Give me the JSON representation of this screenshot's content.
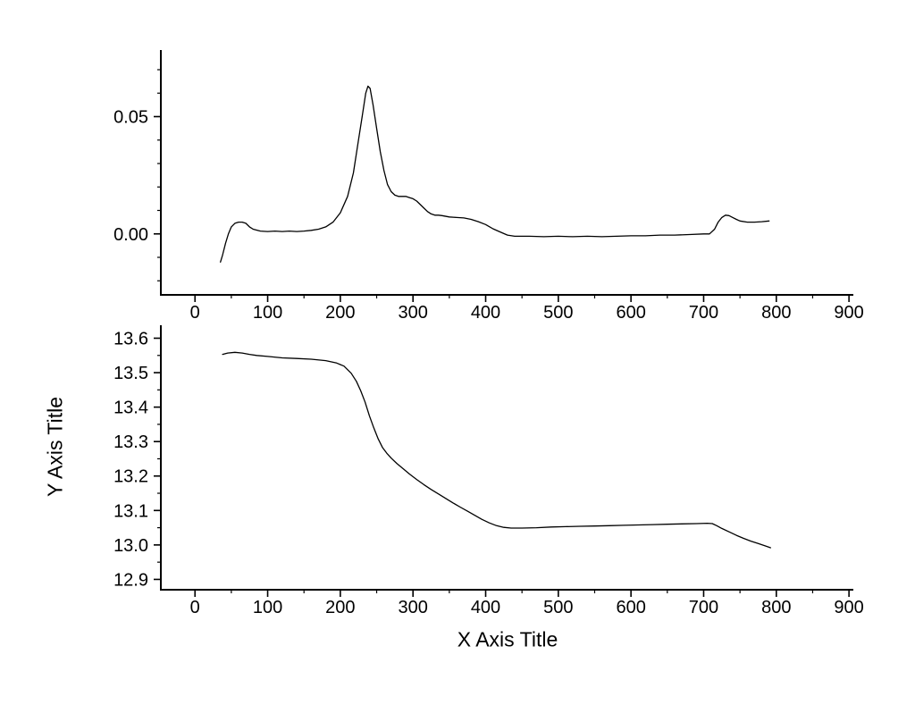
{
  "figure": {
    "background": "#ffffff",
    "line_color": "#000000",
    "axis_color": "#000000"
  },
  "labels": {
    "x_axis_title": "X Axis Title",
    "y_axis_title": "Y Axis Title"
  },
  "chart_data": [
    {
      "type": "line",
      "panel": "top",
      "title": "",
      "xlabel": "",
      "ylabel": "",
      "xlim": [
        -47,
        906
      ],
      "ylim": [
        -0.026,
        0.078
      ],
      "grid": false,
      "legend": "none",
      "x_ticks": [
        0,
        100,
        200,
        300,
        400,
        500,
        600,
        700,
        800,
        900
      ],
      "x_tick_labels": [
        "0",
        "100",
        "200",
        "300",
        "400",
        "500",
        "600",
        "700",
        "800",
        "900"
      ],
      "x_minor_step": 50,
      "y_ticks": [
        0,
        0.05
      ],
      "y_tick_labels": [
        "0.00",
        "0.05"
      ],
      "y_minor_step": 0.01,
      "x": [
        35,
        38,
        42,
        46,
        50,
        55,
        60,
        65,
        70,
        75,
        80,
        90,
        100,
        110,
        120,
        130,
        140,
        150,
        160,
        170,
        180,
        190,
        200,
        210,
        218,
        225,
        230,
        235,
        238,
        241,
        245,
        250,
        255,
        260,
        265,
        270,
        275,
        280,
        285,
        290,
        295,
        300,
        305,
        310,
        315,
        320,
        325,
        330,
        335,
        340,
        350,
        360,
        370,
        380,
        390,
        400,
        410,
        420,
        430,
        440,
        460,
        480,
        500,
        520,
        540,
        560,
        580,
        600,
        620,
        640,
        660,
        680,
        700,
        708,
        715,
        720,
        725,
        730,
        735,
        740,
        745,
        750,
        760,
        770,
        780,
        790
      ],
      "y": [
        -0.012,
        -0.009,
        -0.004,
        0,
        0.003,
        0.0045,
        0.005,
        0.005,
        0.0045,
        0.003,
        0.002,
        0.0012,
        0.001,
        0.0012,
        0.001,
        0.0012,
        0.001,
        0.0012,
        0.0015,
        0.002,
        0.003,
        0.005,
        0.009,
        0.016,
        0.026,
        0.04,
        0.05,
        0.06,
        0.063,
        0.062,
        0.055,
        0.045,
        0.035,
        0.027,
        0.021,
        0.018,
        0.0165,
        0.016,
        0.016,
        0.016,
        0.0155,
        0.015,
        0.014,
        0.0125,
        0.011,
        0.0095,
        0.0085,
        0.008,
        0.008,
        0.0078,
        0.0072,
        0.007,
        0.0068,
        0.0062,
        0.0052,
        0.004,
        0.0022,
        0.0008,
        -0.0005,
        -0.001,
        -0.001,
        -0.0012,
        -0.001,
        -0.0012,
        -0.001,
        -0.0012,
        -0.001,
        -0.0008,
        -0.0008,
        -0.0005,
        -0.0005,
        -0.0003,
        0,
        0,
        0.002,
        0.005,
        0.007,
        0.008,
        0.0078,
        0.007,
        0.0062,
        0.0055,
        0.005,
        0.005,
        0.0052,
        0.0055
      ]
    },
    {
      "type": "line",
      "panel": "bottom",
      "title": "",
      "xlabel": "X Axis Title",
      "ylabel": "Y Axis Title",
      "xlim": [
        -47,
        906
      ],
      "ylim": [
        12.87,
        13.635
      ],
      "grid": false,
      "legend": "none",
      "x_ticks": [
        0,
        100,
        200,
        300,
        400,
        500,
        600,
        700,
        800,
        900
      ],
      "x_tick_labels": [
        "0",
        "100",
        "200",
        "300",
        "400",
        "500",
        "600",
        "700",
        "800",
        "900"
      ],
      "x_minor_step": 50,
      "y_ticks": [
        12.9,
        13.0,
        13.1,
        13.2,
        13.3,
        13.4,
        13.5,
        13.6
      ],
      "y_tick_labels": [
        "12.9",
        "13.0",
        "13.1",
        "13.2",
        "13.3",
        "13.4",
        "13.5",
        "13.6"
      ],
      "y_minor_step": 0.05,
      "x": [
        38,
        45,
        55,
        65,
        75,
        85,
        100,
        120,
        140,
        160,
        180,
        195,
        205,
        215,
        222,
        228,
        234,
        240,
        246,
        252,
        258,
        264,
        270,
        278,
        286,
        295,
        305,
        315,
        325,
        335,
        345,
        355,
        365,
        375,
        385,
        395,
        405,
        415,
        425,
        435,
        450,
        470,
        490,
        510,
        530,
        550,
        570,
        590,
        610,
        630,
        650,
        670,
        690,
        705,
        712,
        718,
        725,
        735,
        745,
        755,
        765,
        775,
        785,
        792
      ],
      "y": [
        13.553,
        13.557,
        13.559,
        13.557,
        13.553,
        13.55,
        13.547,
        13.543,
        13.541,
        13.539,
        13.535,
        13.528,
        13.519,
        13.498,
        13.475,
        13.448,
        13.415,
        13.375,
        13.34,
        13.308,
        13.283,
        13.266,
        13.252,
        13.236,
        13.222,
        13.206,
        13.19,
        13.175,
        13.161,
        13.148,
        13.135,
        13.122,
        13.11,
        13.098,
        13.086,
        13.074,
        13.064,
        13.056,
        13.051,
        13.049,
        13.049,
        13.05,
        13.052,
        13.053,
        13.054,
        13.055,
        13.056,
        13.057,
        13.058,
        13.059,
        13.06,
        13.061,
        13.062,
        13.063,
        13.062,
        13.056,
        13.048,
        13.038,
        13.028,
        13.019,
        13.011,
        13.004,
        12.997,
        12.992
      ]
    }
  ]
}
